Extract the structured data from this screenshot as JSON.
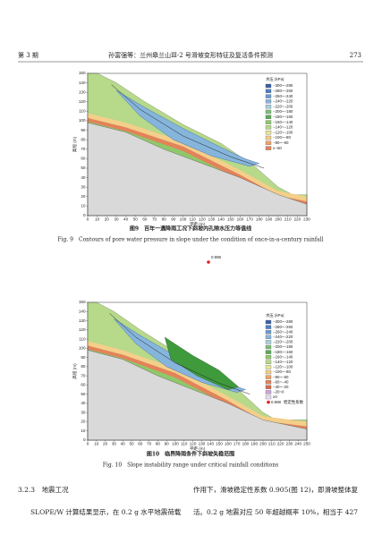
{
  "header": {
    "issue": "第 3 期",
    "running_title": "孙富强等：兰州皋兰山Ⅲ-2 号滑坡变形特征及复活条件预测",
    "page": "273"
  },
  "figure9": {
    "y_label": "高程 (m)",
    "x_label": "平距 (m)",
    "xticks": [
      0,
      10,
      20,
      30,
      40,
      50,
      60,
      70,
      80,
      90,
      100,
      110,
      120,
      130,
      140,
      150,
      160,
      170,
      180,
      190,
      200,
      210,
      220,
      230
    ],
    "yticks": [
      0,
      10,
      20,
      30,
      40,
      50,
      60,
      70,
      80,
      90,
      100,
      110,
      120,
      130,
      140,
      150
    ],
    "legend_title": "水压 (kPa)",
    "legend": [
      "−300~−280",
      "−280~−260",
      "−260~−240",
      "−240~−220",
      "−220~−200",
      "−200~−180",
      "−180~−160",
      "−160~−140",
      "−140~−120",
      "−120~−100",
      "−100~−80",
      "−80~−60",
      "≥−60"
    ],
    "caption_cn": "图9　百年一遇降雨工况下斜坡内孔隙水压力等值线",
    "caption_en": "Fig. 9　Contours of pore water pressure in slope under the condition of once-in-a-century rainfall",
    "marker_label": "0.998"
  },
  "figure10": {
    "y_label": "高程 (m)",
    "x_label": "平距 (m)",
    "xticks": [
      0,
      10,
      20,
      30,
      40,
      50,
      60,
      70,
      80,
      90,
      100,
      110,
      120,
      130,
      140,
      150,
      160,
      170,
      180,
      190,
      200,
      210,
      220,
      230,
      240,
      250
    ],
    "yticks": [
      0,
      10,
      20,
      30,
      40,
      50,
      60,
      70,
      80,
      90,
      100,
      110,
      120,
      130,
      140,
      150
    ],
    "legend_title": "水压 (kPa)",
    "legend": [
      "−300~−280",
      "−280~−260",
      "−260~−240",
      "−240~−220",
      "−220~−200",
      "−200~−180",
      "−180~−160",
      "−160~−140",
      "−140~−120",
      "−120~−100",
      "−100~−80",
      "−80~−60",
      "−60~−40",
      "−40~−20",
      "−20~0",
      "≥0"
    ],
    "stability_value": "0.998",
    "stability_name": "稳定性系数",
    "caption_cn": "图10　临界降雨条件下斜坡失稳范围",
    "caption_en": "Fig. 10　Slope instability range under critical rainfall conditions"
  },
  "body": {
    "section": "3.2.3　地震工况",
    "left": "SLOPE/W 计算结果显示，在 0.2 g 水平地震荷载",
    "right1": "作用下，滑坡稳定性系数 0.905(图 12)，即滑坡整体复",
    "right2": "活。0.2 g 地震对应 50 年超越概率 10%，相当于 427"
  }
}
